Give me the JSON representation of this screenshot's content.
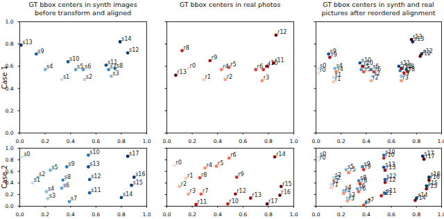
{
  "chart_data": [
    {
      "type": "scatter",
      "title": "GT bbox centers in synth images\nbefore transform and aligned",
      "ylabel": "Case 1",
      "xlim": [
        0,
        1
      ],
      "ylim": [
        0,
        1
      ],
      "xticks": [
        {
          "value": 0,
          "label": "0.0"
        },
        {
          "value": 0.2,
          "label": "0.2"
        },
        {
          "value": 0.4,
          "label": "0.4"
        },
        {
          "value": 0.6,
          "label": "0.6"
        },
        {
          "value": 0.8,
          "label": "0.8"
        },
        {
          "value": 1,
          "label": "1.0"
        }
      ],
      "yticks": [
        {
          "value": 0,
          "label": "0.0"
        },
        {
          "value": 0.2,
          "label": "0.2"
        },
        {
          "value": 0.4,
          "label": "0.4"
        },
        {
          "value": 0.6,
          "label": "0.6"
        },
        {
          "value": 0.8,
          "label": "0.8"
        },
        {
          "value": 1,
          "label": "1.0"
        }
      ],
      "labels": [
        "s1",
        "s2",
        "s3",
        "s4",
        "s5",
        "s6",
        "s7",
        "s8",
        "s9",
        "s10",
        "s11",
        "s12",
        "s13",
        "s14"
      ],
      "x": [
        0.33,
        0.51,
        0.72,
        0.2,
        0.44,
        0.5,
        0.7,
        0.75,
        0.13,
        0.38,
        0.68,
        0.85,
        0.01,
        0.79
      ],
      "values": [
        0.48,
        0.48,
        0.51,
        0.57,
        0.57,
        0.57,
        0.57,
        0.58,
        0.71,
        0.64,
        0.61,
        0.72,
        0.79,
        0.82
      ],
      "colors": [
        "#c6dbef",
        "#b3d3e8",
        "#89bedc",
        "#72b2d7",
        "#5ba3d0",
        "#4a98c9",
        "#3a8ac2",
        "#2070b4",
        "#1764ab",
        "#0e59a2",
        "#08509b",
        "#083f80",
        "#08366f",
        "#08306b"
      ]
    },
    {
      "type": "scatter",
      "title": "GT bbox centers in real photos",
      "tick_labels": "x",
      "xlim": [
        0,
        1
      ],
      "ylim": [
        0,
        1
      ],
      "xticks": [
        {
          "value": 0,
          "label": "0.0"
        },
        {
          "value": 0.2,
          "label": "0.2"
        },
        {
          "value": 0.4,
          "label": "0.4"
        },
        {
          "value": 0.6,
          "label": "0.6"
        },
        {
          "value": 0.8,
          "label": "0.8"
        },
        {
          "value": 1,
          "label": "1.0"
        }
      ],
      "yticks": [
        0,
        0.2,
        0.4,
        0.6,
        0.8,
        1
      ],
      "labels": [
        "r0",
        "r1",
        "r2",
        "r3",
        "r4",
        "r5",
        "r6",
        "r7",
        "r8",
        "r9",
        "r10",
        "r11",
        "r12",
        "r13"
      ],
      "x": [
        0.17,
        0.29,
        0.46,
        0.75,
        0.43,
        0.49,
        0.7,
        0.76,
        0.12,
        0.34,
        0.79,
        0.84,
        0.86,
        0.07
      ],
      "values": [
        0.58,
        0.48,
        0.48,
        0.47,
        0.57,
        0.59,
        0.57,
        0.57,
        0.74,
        0.65,
        0.6,
        0.63,
        0.88,
        0.52
      ],
      "colors": [
        "#fddbcb",
        "#fcc8b0",
        "#fca082",
        "#fc8c6c",
        "#fb7858",
        "#ef4f3b",
        "#e53d2f",
        "#d92e25",
        "#cb211e",
        "#a91016",
        "#980c13",
        "#870811",
        "#67000d",
        "#5a000b"
      ]
    },
    {
      "type": "scatter",
      "title": "GT bbox centers in synth and real\npictures after reordered alignment",
      "tick_labels": "x",
      "xlim": [
        0,
        1
      ],
      "ylim": [
        0,
        1
      ],
      "xticks": [
        {
          "value": 0,
          "label": "0.0"
        },
        {
          "value": 0.2,
          "label": "0.2"
        },
        {
          "value": 0.4,
          "label": "0.4"
        },
        {
          "value": 0.6,
          "label": "0.6"
        },
        {
          "value": 0.8,
          "label": "0.8"
        },
        {
          "value": 1,
          "label": "1.0"
        }
      ],
      "yticks": [
        0,
        0.2,
        0.4,
        0.6,
        0.8,
        1
      ],
      "labels": [
        "s0",
        "s1",
        "s2",
        "s3",
        "s4",
        "s5",
        "s6",
        "s7",
        "s8",
        "s9",
        "s10",
        "s11",
        "s12",
        "s13",
        "r0",
        "r1",
        "r2",
        "r3",
        "r4",
        "r5",
        "r6",
        "r7",
        "r8",
        "r9",
        "r10",
        "r11",
        "r12",
        "r13"
      ],
      "x": [
        0.02,
        0.14,
        0.45,
        0.68,
        0.15,
        0.36,
        0.44,
        0.67,
        0.72,
        0.1,
        0.35,
        0.66,
        0.84,
        0.77,
        0.02,
        0.14,
        0.44,
        0.68,
        0.16,
        0.38,
        0.46,
        0.7,
        0.73,
        0.11,
        0.37,
        0.68,
        0.83,
        0.76
      ],
      "values": [
        0.58,
        0.5,
        0.51,
        0.51,
        0.58,
        0.57,
        0.57,
        0.56,
        0.57,
        0.71,
        0.63,
        0.6,
        0.71,
        0.82,
        0.54,
        0.46,
        0.47,
        0.47,
        0.55,
        0.55,
        0.55,
        0.54,
        0.55,
        0.68,
        0.6,
        0.58,
        0.69,
        0.84
      ],
      "colors": [
        "#d6e6f4",
        "#c6dbef",
        "#9fcae1",
        "#89bedc",
        "#72b2d7",
        "#4a98c9",
        "#3a8ac2",
        "#2c7bb6",
        "#2070b4",
        "#0e59a2",
        "#08509b",
        "#084a91",
        "#08366f",
        "#08306b",
        "#fddbcb",
        "#fcc8b0",
        "#fca082",
        "#fc8c6c",
        "#fb7858",
        "#ef4f3b",
        "#e53d2f",
        "#d92e25",
        "#cb211e",
        "#a91016",
        "#980c13",
        "#870811",
        "#67000d",
        "#5a000b"
      ]
    },
    {
      "type": "scatter",
      "ylabel": "Case 2",
      "xlim": [
        0,
        1
      ],
      "ylim": [
        0,
        1
      ],
      "xticks": [
        {
          "value": 0,
          "label": "0.0"
        },
        {
          "value": 0.2,
          "label": "0.2"
        },
        {
          "value": 0.4,
          "label": "0.4"
        },
        {
          "value": 0.6,
          "label": "0.6"
        },
        {
          "value": 0.8,
          "label": "0.8"
        },
        {
          "value": 1,
          "label": "1.0"
        }
      ],
      "yticks": [
        {
          "value": 0,
          "label": "0.0"
        },
        {
          "value": 0.2,
          "label": "0.2"
        },
        {
          "value": 0.4,
          "label": "0.4"
        },
        {
          "value": 0.6,
          "label": "0.6"
        },
        {
          "value": 0.8,
          "label": "0.8"
        },
        {
          "value": 1,
          "label": "1.0"
        }
      ],
      "labels": [
        "s0",
        "s1",
        "s2",
        "s3",
        "s4",
        "s5",
        "s6",
        "s7",
        "s8",
        "s9",
        "s10",
        "s11",
        "s12",
        "s13",
        "s14",
        "s15",
        "s16",
        "s17"
      ],
      "x": [
        0.02,
        0.1,
        0.14,
        0.22,
        0.21,
        0.24,
        0.33,
        0.39,
        0.34,
        0.37,
        0.54,
        0.55,
        0.55,
        0.54,
        0.8,
        0.88,
        0.9,
        0.85
      ],
      "values": [
        0.85,
        0.4,
        0.5,
        0.13,
        0.25,
        0.62,
        0.31,
        0.08,
        0.45,
        0.68,
        0.88,
        0.23,
        0.46,
        0.68,
        0.15,
        0.36,
        0.5,
        0.86
      ],
      "colors": [
        "#d6e6f4",
        "#c6dbef",
        "#b3d3e8",
        "#9fcae1",
        "#89bedc",
        "#72b2d7",
        "#5ba3d0",
        "#4a98c9",
        "#3a8ac2",
        "#2c7bb6",
        "#2070b4",
        "#1764ab",
        "#0e59a2",
        "#08509b",
        "#084a91",
        "#083f80",
        "#08366f",
        "#08306b"
      ]
    },
    {
      "type": "scatter",
      "tick_labels": "x",
      "xlim": [
        0,
        1
      ],
      "ylim": [
        0,
        1
      ],
      "xticks": [
        {
          "value": 0,
          "label": "0.0"
        },
        {
          "value": 0.2,
          "label": "0.2"
        },
        {
          "value": 0.4,
          "label": "0.4"
        },
        {
          "value": 0.6,
          "label": "0.6"
        },
        {
          "value": 0.8,
          "label": "0.8"
        },
        {
          "value": 1,
          "label": "1.0"
        }
      ],
      "yticks": [
        0,
        0.2,
        0.4,
        0.6,
        0.8,
        1
      ],
      "labels": [
        "r0",
        "r1",
        "r2",
        "r3",
        "r4",
        "r5",
        "r6",
        "r7",
        "r8",
        "r9",
        "r10",
        "r11",
        "r12",
        "r13",
        "r14",
        "r15",
        "r16",
        "r17"
      ],
      "x": [
        0.06,
        0.15,
        0.1,
        0.17,
        0.3,
        0.39,
        0.49,
        0.27,
        0.26,
        0.55,
        0.48,
        0.23,
        0.54,
        0.66,
        0.85,
        0.9,
        0.89,
        0.79
      ],
      "values": [
        0.7,
        0.48,
        0.34,
        0.21,
        0.66,
        0.69,
        0.83,
        0.21,
        0.49,
        0.5,
        0.04,
        0.03,
        0.21,
        0.14,
        0.85,
        0.34,
        0.19,
        0.04
      ],
      "colors": [
        "#fddbcb",
        "#fcc8b0",
        "#fcb499",
        "#fca082",
        "#fc8c6c",
        "#fb7858",
        "#f6644a",
        "#ef4f3b",
        "#e53d2f",
        "#d92e25",
        "#cb211e",
        "#bb151a",
        "#a91016",
        "#980c13",
        "#870811",
        "#75040f",
        "#67000d",
        "#5a000b"
      ]
    },
    {
      "type": "scatter",
      "tick_labels": "x",
      "xlim": [
        0,
        1
      ],
      "ylim": [
        0,
        1
      ],
      "xticks": [
        {
          "value": 0,
          "label": "0.0"
        },
        {
          "value": 0.2,
          "label": "0.2"
        },
        {
          "value": 0.4,
          "label": "0.4"
        },
        {
          "value": 0.6,
          "label": "0.6"
        },
        {
          "value": 0.8,
          "label": "0.8"
        },
        {
          "value": 1,
          "label": "1.0"
        }
      ],
      "yticks": [
        0,
        0.2,
        0.4,
        0.6,
        0.8,
        1
      ],
      "labels": [
        "s0",
        "s1",
        "s2",
        "s3",
        "s4",
        "s5",
        "s6",
        "s7",
        "s8",
        "s9",
        "s10",
        "s11",
        "s12",
        "s13",
        "s14",
        "s15",
        "s16",
        "s17",
        "r0",
        "r1",
        "r2",
        "r3",
        "r4",
        "r5",
        "r6",
        "r7",
        "r8",
        "r9",
        "r10",
        "r11",
        "r12",
        "r13",
        "r14",
        "r15",
        "r16",
        "r17"
      ],
      "x": [
        0.02,
        0.12,
        0.14,
        0.25,
        0.22,
        0.24,
        0.33,
        0.4,
        0.34,
        0.37,
        0.54,
        0.55,
        0.55,
        0.54,
        0.8,
        0.88,
        0.9,
        0.85,
        0.02,
        0.12,
        0.14,
        0.25,
        0.22,
        0.26,
        0.34,
        0.38,
        0.35,
        0.38,
        0.54,
        0.52,
        0.55,
        0.55,
        0.79,
        0.88,
        0.9,
        0.86
      ],
      "values": [
        0.85,
        0.38,
        0.49,
        0.14,
        0.27,
        0.63,
        0.3,
        0.06,
        0.44,
        0.68,
        0.88,
        0.22,
        0.46,
        0.67,
        0.14,
        0.35,
        0.5,
        0.86,
        0.79,
        0.32,
        0.44,
        0.09,
        0.22,
        0.58,
        0.25,
        0.02,
        0.39,
        0.63,
        0.83,
        0.18,
        0.41,
        0.62,
        0.1,
        0.3,
        0.45,
        0.81
      ],
      "colors": [
        "#d6e6f4",
        "#c6dbef",
        "#b3d3e8",
        "#9fcae1",
        "#89bedc",
        "#72b2d7",
        "#5ba3d0",
        "#4a98c9",
        "#3a8ac2",
        "#2c7bb6",
        "#2070b4",
        "#1764ab",
        "#0e59a2",
        "#08509b",
        "#084a91",
        "#083f80",
        "#08366f",
        "#08306b",
        "#fddbcb",
        "#fcc8b0",
        "#fcb499",
        "#fca082",
        "#fc8c6c",
        "#fb7858",
        "#f6644a",
        "#ef4f3b",
        "#e53d2f",
        "#d92e25",
        "#cb211e",
        "#bb151a",
        "#a91016",
        "#980c13",
        "#870811",
        "#75040f",
        "#67000d",
        "#5a000b"
      ]
    }
  ]
}
